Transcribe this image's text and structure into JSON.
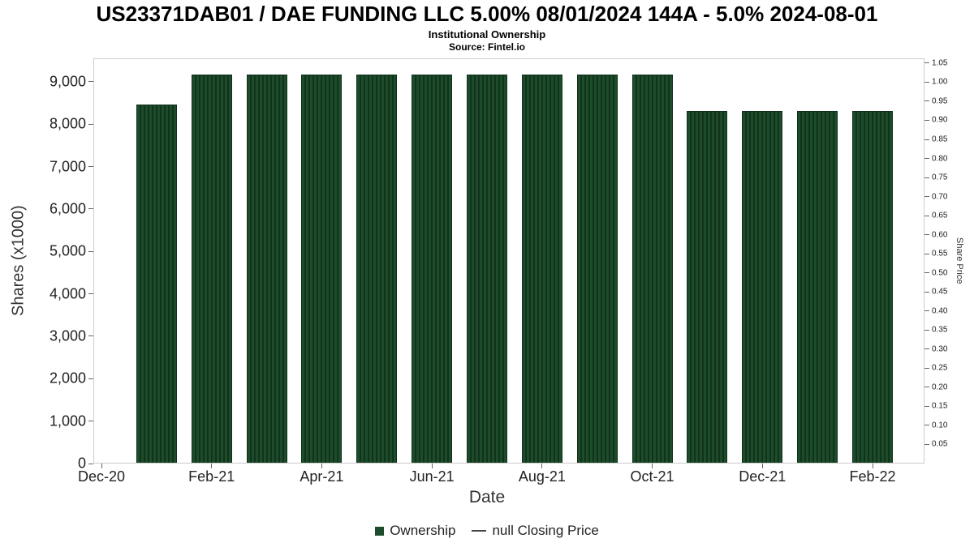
{
  "header": {
    "title": "US23371DAB01 / DAE FUNDING LLC 5.00% 08/01/2024 144A - 5.0% 2024-08-01",
    "subtitle": "Institutional Ownership",
    "source": "Source: Fintel.io"
  },
  "chart_data": {
    "type": "bar",
    "title": "Institutional Ownership",
    "xlabel": "Date",
    "ylabel_left": "Shares (x1000)",
    "ylabel_right": "Share Price",
    "x_tick_labels": [
      "Dec-20",
      "Feb-21",
      "Apr-21",
      "Jun-21",
      "Aug-21",
      "Oct-21",
      "Dec-21",
      "Feb-22"
    ],
    "x_tick_month_step": 2,
    "bar_start_month_offset": 1,
    "y_ticks_left": [
      "0",
      "1,000",
      "2,000",
      "3,000",
      "4,000",
      "5,000",
      "6,000",
      "7,000",
      "8,000",
      "9,000"
    ],
    "y_ticks_right": [
      "1.05",
      "1.00",
      "0.95",
      "0.90",
      "0.85",
      "0.80",
      "0.75",
      "0.70",
      "0.65",
      "0.60",
      "0.55",
      "0.50",
      "0.45",
      "0.40",
      "0.35",
      "0.30",
      "0.25",
      "0.20",
      "0.15",
      "0.10",
      "0.05"
    ],
    "ylim_left": [
      0,
      9554
    ],
    "ylim_right": [
      0,
      1.0625
    ],
    "grid": false,
    "legend_position": "bottom",
    "bar_color": "#1d4c2b",
    "bar_stripe_color": "#11331c",
    "categories": [
      "Jan-21",
      "Feb-21",
      "Mar-21",
      "Apr-21",
      "May-21",
      "Jun-21",
      "Jul-21",
      "Aug-21",
      "Sep-21",
      "Oct-21",
      "Nov-21",
      "Dec-21",
      "Jan-22",
      "Feb-22"
    ],
    "values": [
      8450,
      9150,
      9150,
      9150,
      9150,
      9150,
      9150,
      9150,
      9150,
      9150,
      8300,
      8300,
      8300,
      8300
    ],
    "legend": [
      {
        "symbol": "square",
        "label": "Ownership"
      },
      {
        "symbol": "line",
        "label": "null Closing Price"
      }
    ]
  }
}
